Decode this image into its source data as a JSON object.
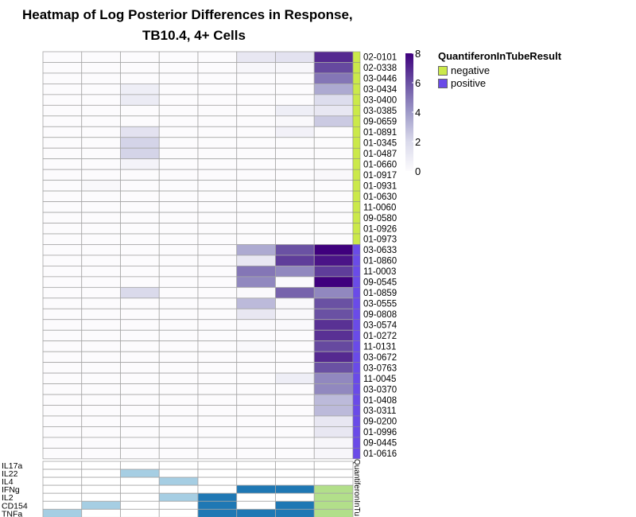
{
  "chart_data": {
    "type": "heatmap",
    "title": "Heatmap of Log Posterior Differences in Response, TB10.4, 4+ Cells",
    "title_lines": [
      "Heatmap of Log Posterior Differences in Response,",
      "TB10.4, 4+ Cells"
    ],
    "rows": [
      "02-0101",
      "02-0338",
      "03-0446",
      "03-0434",
      "03-0400",
      "03-0385",
      "09-0659",
      "01-0891",
      "01-0345",
      "01-0487",
      "01-0660",
      "01-0917",
      "01-0931",
      "01-0630",
      "11-0060",
      "09-0580",
      "01-0926",
      "01-0973",
      "03-0633",
      "01-0860",
      "11-0003",
      "09-0545",
      "01-0859",
      "03-0555",
      "09-0808",
      "03-0574",
      "01-0272",
      "11-0131",
      "03-0672",
      "03-0763",
      "11-0045",
      "03-0370",
      "01-0408",
      "03-0311",
      "09-0200",
      "01-0996",
      "09-0445",
      "01-0616"
    ],
    "row_group": [
      "negative",
      "negative",
      "negative",
      "negative",
      "negative",
      "negative",
      "negative",
      "negative",
      "negative",
      "negative",
      "negative",
      "negative",
      "negative",
      "negative",
      "negative",
      "negative",
      "negative",
      "negative",
      "positive",
      "positive",
      "positive",
      "positive",
      "positive",
      "positive",
      "positive",
      "positive",
      "positive",
      "positive",
      "positive",
      "positive",
      "positive",
      "positive",
      "positive",
      "positive",
      "positive",
      "positive",
      "positive",
      "positive"
    ],
    "values": [
      [
        0,
        0,
        0,
        0,
        0,
        1.2,
        1.5,
        7.0
      ],
      [
        0,
        0,
        0,
        0,
        0,
        0.3,
        0.3,
        6.2
      ],
      [
        0,
        0,
        0,
        0,
        0,
        0,
        0,
        5.0
      ],
      [
        0,
        0,
        0.8,
        0,
        0,
        0,
        0,
        3.5
      ],
      [
        0,
        0,
        1.0,
        0,
        0,
        0,
        0,
        1.8
      ],
      [
        0,
        0,
        0,
        0,
        0,
        0,
        0.8,
        1.2
      ],
      [
        0,
        0,
        0,
        0,
        0,
        0,
        0.2,
        2.5
      ],
      [
        0,
        0,
        1.5,
        0,
        0,
        0,
        0.6,
        0
      ],
      [
        0,
        0,
        2.2,
        0,
        0,
        0,
        0,
        0
      ],
      [
        0,
        0,
        2.2,
        0,
        0,
        0,
        0,
        0
      ],
      [
        0,
        0,
        0.5,
        0,
        0,
        0,
        0,
        0
      ],
      [
        0,
        0,
        0,
        0,
        0,
        0,
        0,
        0.2
      ],
      [
        0,
        0.2,
        0,
        0,
        0,
        0,
        0,
        0
      ],
      [
        0,
        0,
        0,
        0,
        0,
        0,
        0,
        0
      ],
      [
        0,
        0,
        0,
        0,
        0,
        0,
        0,
        0
      ],
      [
        0,
        0,
        0,
        0,
        0,
        0,
        0,
        0
      ],
      [
        0,
        0,
        0,
        0,
        0,
        0,
        0,
        0
      ],
      [
        0,
        0,
        0,
        0,
        0,
        0,
        0,
        0
      ],
      [
        0,
        0,
        0,
        0,
        0,
        3.5,
        6.0,
        8.0
      ],
      [
        0,
        0,
        0,
        0,
        0,
        1.2,
        6.5,
        7.5
      ],
      [
        0,
        0,
        0,
        0,
        0,
        5.0,
        4.5,
        6.5
      ],
      [
        0,
        0,
        0,
        0,
        0,
        4.5,
        0.1,
        8.0
      ],
      [
        0,
        0,
        2.0,
        0,
        0,
        0.1,
        5.5,
        4.5
      ],
      [
        0,
        0,
        0,
        0,
        0,
        3.0,
        0.2,
        6.0
      ],
      [
        0,
        0,
        0,
        0,
        0,
        1.2,
        0.2,
        6.0
      ],
      [
        0,
        0,
        0,
        0,
        0,
        0.1,
        0.1,
        6.8
      ],
      [
        0,
        0,
        0,
        0,
        0,
        0,
        0,
        6.8
      ],
      [
        0,
        0,
        0,
        0,
        0,
        0.2,
        0,
        6.2
      ],
      [
        0,
        0,
        0,
        0,
        0,
        0,
        0,
        7.0
      ],
      [
        0,
        0,
        0,
        0,
        0,
        0,
        0,
        6.0
      ],
      [
        0,
        0,
        0,
        0,
        0,
        0,
        0.8,
        4.5
      ],
      [
        0,
        0,
        0,
        0,
        0,
        0,
        0,
        4.5
      ],
      [
        0,
        0,
        0,
        0,
        0,
        0,
        0,
        3.0
      ],
      [
        0,
        0,
        0,
        0,
        0,
        0,
        0,
        3.0
      ],
      [
        0,
        0,
        0,
        0,
        0,
        0,
        0,
        1.2
      ],
      [
        0,
        0,
        0,
        0,
        0,
        0,
        0,
        1.2
      ],
      [
        0,
        0,
        0,
        0,
        0,
        0,
        0,
        0.3
      ],
      [
        0,
        0,
        0,
        0,
        0,
        0,
        0,
        0.3
      ]
    ],
    "colorbar": {
      "ticks": [
        0,
        2,
        4,
        6,
        8
      ],
      "range": [
        0,
        8
      ]
    },
    "legend": {
      "title": "QuantiferonInTubeResult",
      "entries": [
        {
          "label": "negative",
          "color": "#cbe94a"
        },
        {
          "label": "positive",
          "color": "#6a4be8"
        }
      ]
    },
    "annotation_bar_label": "QuantiferonInTu",
    "col_annotations": {
      "labels": [
        "IL17a",
        "IL22",
        "IL4",
        "IFNg",
        "IL2",
        "CD154",
        "TNFa"
      ],
      "matrix": [
        [
          0,
          0,
          0,
          0,
          0,
          0,
          0,
          0
        ],
        [
          0,
          0,
          1,
          0,
          0,
          0,
          0,
          0
        ],
        [
          0,
          0,
          0,
          2,
          0,
          0,
          0,
          0
        ],
        [
          0,
          0,
          0,
          0,
          0,
          3,
          3,
          4
        ],
        [
          0,
          0,
          0,
          2,
          3,
          0,
          0,
          4
        ],
        [
          0,
          1,
          0,
          0,
          3,
          0,
          3,
          4
        ],
        [
          1,
          0,
          0,
          0,
          3,
          3,
          3,
          4
        ]
      ],
      "colors": [
        "#ffffff",
        "#a6cee3",
        "#a6cee3",
        "#1f78b4",
        "#b2df8a",
        "#33a02c"
      ]
    },
    "colors": {
      "scale": [
        "#fcfbfd",
        "#dadaeb",
        "#9e9ac8",
        "#6a51a3",
        "#3f007d"
      ],
      "grid": "#a6a6a6"
    }
  }
}
